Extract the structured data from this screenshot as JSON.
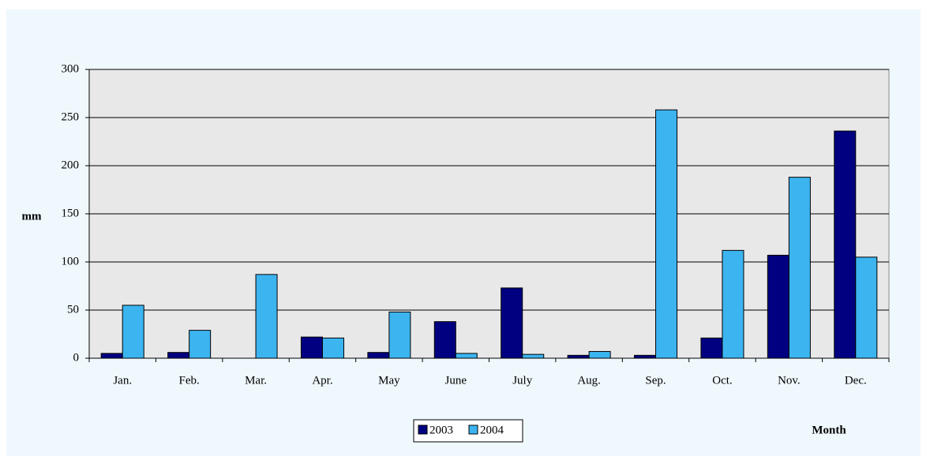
{
  "chart_data": {
    "type": "bar",
    "categories": [
      "Jan.",
      "Feb.",
      "Mar.",
      "Apr.",
      "May",
      "June",
      "July",
      "Aug.",
      "Sep.",
      "Oct.",
      "Nov.",
      "Dec."
    ],
    "series": [
      {
        "name": "2003",
        "color": "#000080",
        "values": [
          5,
          6,
          0,
          22,
          6,
          38,
          73,
          3,
          3,
          21,
          107,
          236
        ]
      },
      {
        "name": "2004",
        "color": "#3cb4f0",
        "values": [
          55,
          29,
          87,
          21,
          48,
          5,
          4,
          7,
          258,
          112,
          188,
          105
        ]
      }
    ],
    "y_label": "mm",
    "x_label": "Month",
    "ylim": [
      0,
      300
    ],
    "yticks": [
      0,
      50,
      100,
      150,
      200,
      250,
      300
    ],
    "grid": true,
    "legend": "bottom"
  }
}
